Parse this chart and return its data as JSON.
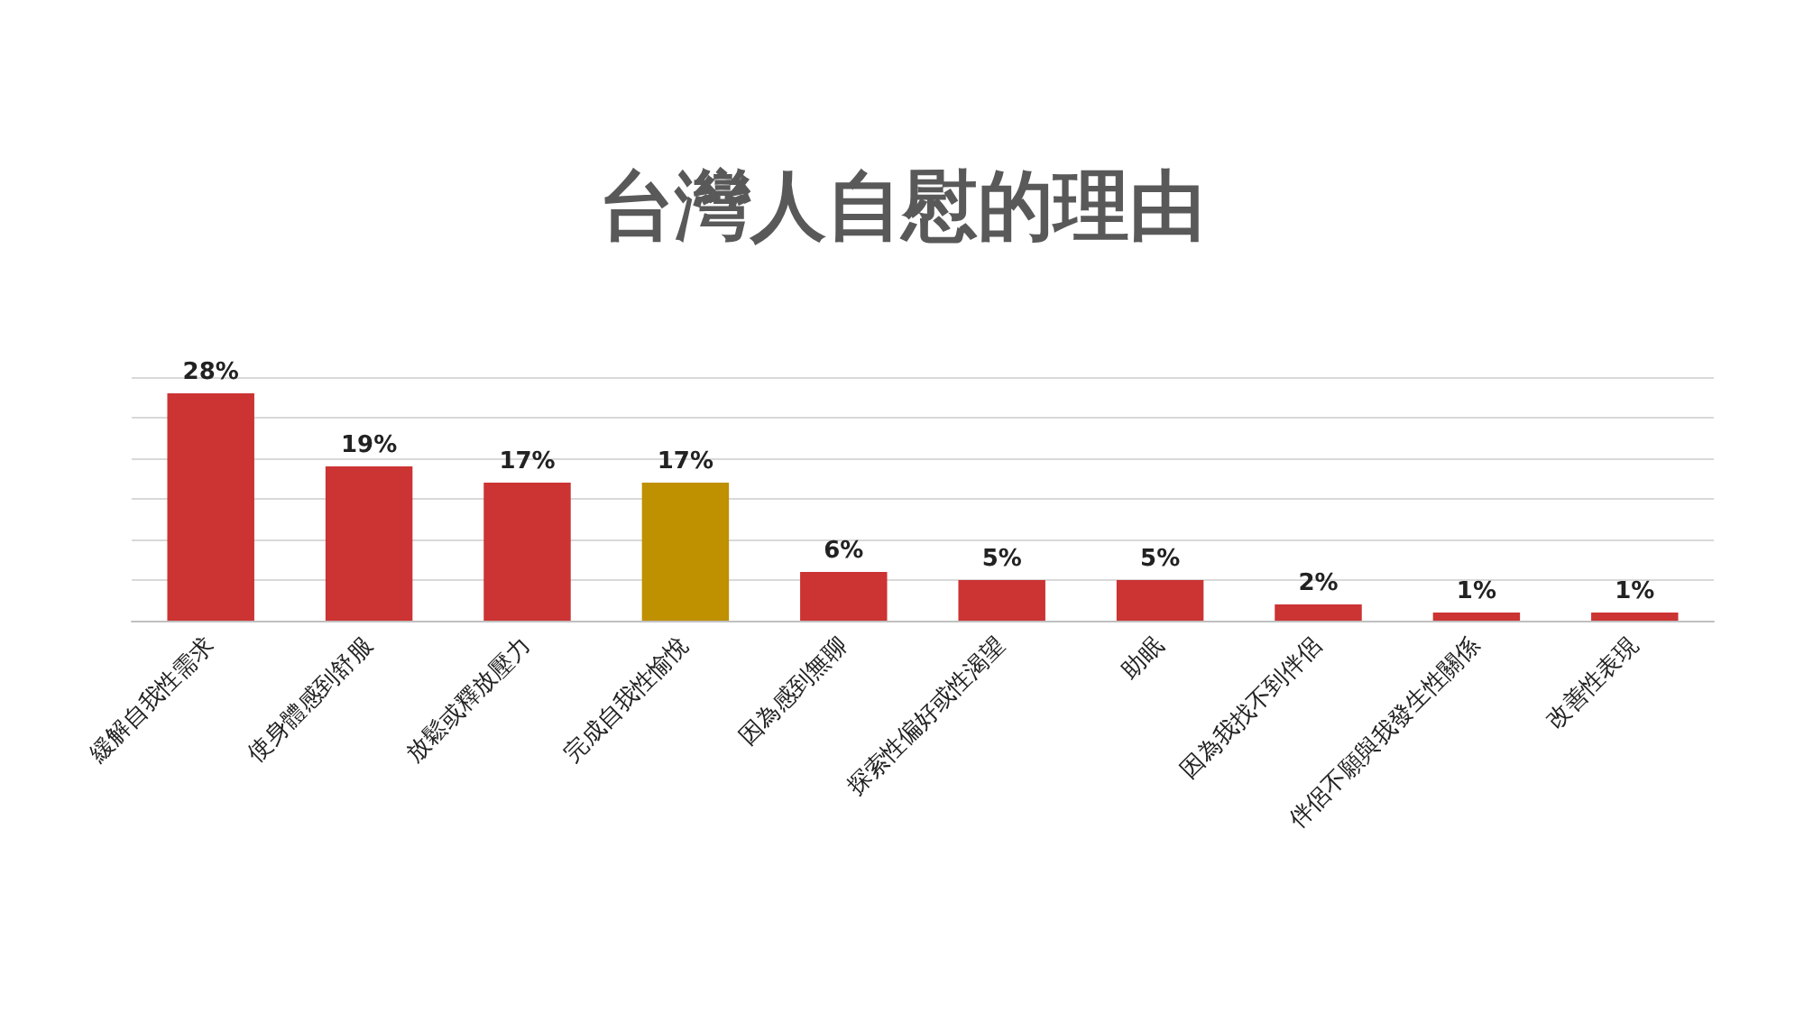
{
  "chart_data": {
    "type": "bar",
    "title": "台灣人自慰的理由",
    "categories": [
      "緩解自我性需求",
      "使身體感到舒服",
      "放鬆或釋放壓力",
      "完成自我性愉悅",
      "因為感到無聊",
      "探索性偏好或性渴望",
      "助眠",
      "因為我找不到伴侶",
      "伴侶不願與我發生性關係",
      "改善性表現"
    ],
    "values": [
      28,
      19,
      17,
      17,
      6,
      5,
      5,
      2,
      1,
      1
    ],
    "value_labels": [
      "28%",
      "19%",
      "17%",
      "17%",
      "6%",
      "5%",
      "5%",
      "2%",
      "1%",
      "1%"
    ],
    "colors": [
      "#cc3333",
      "#cc3333",
      "#cc3333",
      "#bf9000",
      "#cc3333",
      "#cc3333",
      "#cc3333",
      "#cc3333",
      "#cc3333",
      "#cc3333"
    ],
    "ylim": [
      0,
      30
    ],
    "yticks": [
      {
        "value": 0,
        "label": null
      },
      {
        "value": 5,
        "label": null
      },
      {
        "value": 10,
        "label": null
      },
      {
        "value": 15,
        "label": null
      },
      {
        "value": 20,
        "label": null
      },
      {
        "value": 25,
        "label": null
      },
      {
        "value": 30,
        "label": null
      }
    ],
    "tick_labels": "x",
    "grid": "y"
  }
}
